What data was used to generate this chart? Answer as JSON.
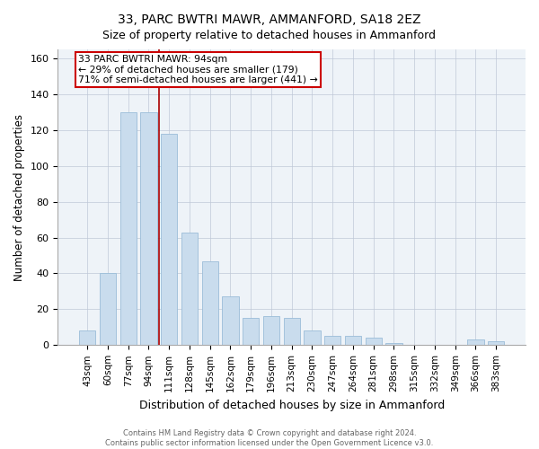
{
  "title": "33, PARC BWTRI MAWR, AMMANFORD, SA18 2EZ",
  "subtitle": "Size of property relative to detached houses in Ammanford",
  "xlabel": "Distribution of detached houses by size in Ammanford",
  "ylabel": "Number of detached properties",
  "categories": [
    "43sqm",
    "60sqm",
    "77sqm",
    "94sqm",
    "111sqm",
    "128sqm",
    "145sqm",
    "162sqm",
    "179sqm",
    "196sqm",
    "213sqm",
    "230sqm",
    "247sqm",
    "264sqm",
    "281sqm",
    "298sqm",
    "315sqm",
    "332sqm",
    "349sqm",
    "366sqm",
    "383sqm"
  ],
  "values": [
    8,
    40,
    130,
    130,
    118,
    63,
    47,
    27,
    15,
    16,
    15,
    8,
    5,
    5,
    4,
    1,
    0,
    0,
    0,
    3,
    2
  ],
  "bar_color": "#c9dced",
  "bar_edge_color": "#9bbdd8",
  "property_label": "33 PARC BWTRI MAWR: 94sqm",
  "annotation_line1": "← 29% of detached houses are smaller (179)",
  "annotation_line2": "71% of semi-detached houses are larger (441) →",
  "vline_color": "#aa0000",
  "vline_index": 3.5,
  "box_color": "#cc0000",
  "ylim": [
    0,
    165
  ],
  "yticks": [
    0,
    20,
    40,
    60,
    80,
    100,
    120,
    140,
    160
  ],
  "footer_line1": "Contains HM Land Registry data © Crown copyright and database right 2024.",
  "footer_line2": "Contains public sector information licensed under the Open Government Licence v3.0.",
  "title_fontsize": 10,
  "bg_color": "#eef3f8"
}
